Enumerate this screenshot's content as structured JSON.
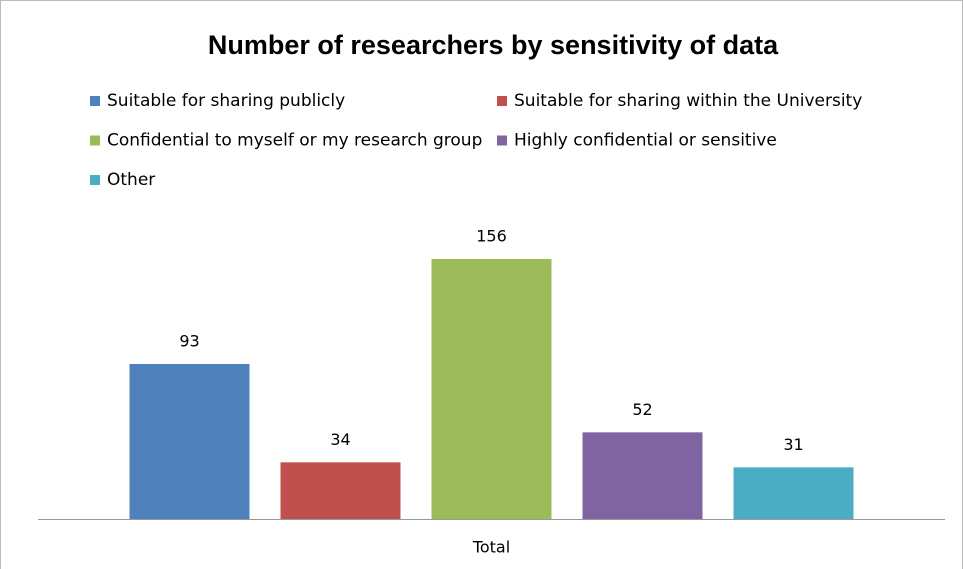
{
  "chart_data": {
    "type": "bar",
    "title": "Number of researchers by sensitivity of data",
    "categories": [
      "Total"
    ],
    "series": [
      {
        "name": "Suitable for sharing publicly",
        "color": "#4f81bd",
        "values": [
          93
        ]
      },
      {
        "name": "Suitable for sharing within the University",
        "color": "#c0504d",
        "values": [
          34
        ]
      },
      {
        "name": "Confidential to myself or my research group",
        "color": "#9bbb59",
        "values": [
          156
        ]
      },
      {
        "name": "Highly confidential or sensitive",
        "color": "#8064a2",
        "values": [
          52
        ]
      },
      {
        "name": "Other",
        "color": "#4bacc6",
        "values": [
          31
        ]
      }
    ],
    "legend": "top",
    "grid": false
  }
}
